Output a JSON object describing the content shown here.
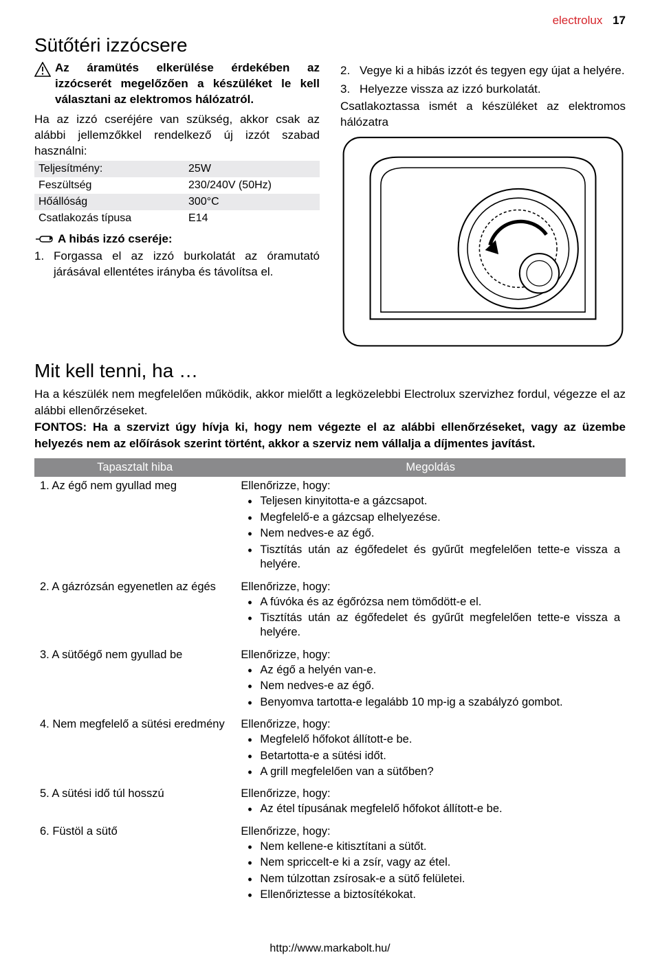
{
  "header": {
    "brand": "electrolux",
    "page_number": "17"
  },
  "section1": {
    "title": "Sütőtéri izzócsere",
    "warning_text": "Az áramütés elkerülése érdekében az izzócserét megelőzően a készüléket le kell választani az elektromos hálózatról.",
    "intro_text": "Ha az izzó cseréjére van szükség, akkor csak az alábbi jellemzőkkel rendelkező új izzót szabad használni:",
    "specs": [
      {
        "label": "Teljesítmény:",
        "value": "25W"
      },
      {
        "label": "Feszültség",
        "value": "230/240V (50Hz)"
      },
      {
        "label": "Hőállóság",
        "value": "300°C"
      },
      {
        "label": "Csatlakozás típusa",
        "value": "E14"
      }
    ],
    "subheading": "A hibás izzó cseréje:",
    "step1_num": "1.",
    "step1_text": "Forgassa el az izzó burkolatát az óramutató járásával ellentétes irányba és távolítsa el.",
    "step2_num": "2.",
    "step2_text": "Vegye ki a hibás izzót és tegyen egy újat a helyére.",
    "step3_num": "3.",
    "step3_text": "Helyezze vissza az izzó burkolatát.",
    "after_steps": "Csatlakoztassa ismét a készüléket az elektromos hálózatra"
  },
  "section2": {
    "title": "Mit kell tenni, ha …",
    "intro": "Ha a készülék nem megfelelően működik, akkor mielőtt a legközelebbi Electrolux szervizhez fordul, végezze el az alábbi ellenőrzéseket.",
    "bold_note": "FONTOS: Ha a szervizt úgy hívja ki, hogy nem végezte el az alábbi ellenőrzéseket, vagy az üzembe helyezés nem az előírások szerint történt, akkor a szerviz nem vállalja a díjmentes javítást.",
    "table": {
      "col_issue": "Tapasztalt hiba",
      "col_solution": "Megoldás",
      "lead": "Ellenőrizze, hogy:",
      "rows": [
        {
          "issue": "1. Az égő nem gyullad meg",
          "items": [
            "Teljesen kinyitotta-e a gázcsapot.",
            "Megfelelő-e a gázcsap elhelyezése.",
            "Nem nedves-e az égő.",
            "Tisztítás után az égőfedelet és gyűrűt megfelelően tette-e vissza a helyére."
          ]
        },
        {
          "issue": "2. A gázrózsán egyenetlen az égés",
          "items": [
            "A fúvóka és az égőrózsa nem tömődött-e el.",
            "Tisztítás után az égőfedelet és gyűrűt megfelelően tette-e vissza a helyére."
          ]
        },
        {
          "issue": "3. A sütőégő nem gyullad be",
          "items": [
            "Az égő a helyén van-e.",
            "Nem nedves-e az égő.",
            "Benyomva tartotta-e legalább 10 mp-ig a szabályzó gombot."
          ]
        },
        {
          "issue": "4. Nem megfelelő a sütési eredmény",
          "items": [
            "Megfelelő hőfokot állított-e be.",
            "Betartotta-e a sütési időt.",
            "A grill megfelelően van a sütőben?"
          ]
        },
        {
          "issue": "5. A sütési idő túl hosszú",
          "items": [
            "Az étel típusának megfelelő hőfokot állított-e be."
          ]
        },
        {
          "issue": "6. Füstöl a sütő",
          "items": [
            "Nem kellene-e kitisztítani a sütőt.",
            "Nem spriccelt-e ki a zsír, vagy az étel.",
            "Nem túlzottan zsírosak-e a sütő felületei.",
            "Ellenőriztesse a biztosítékokat."
          ]
        }
      ]
    }
  },
  "footer": {
    "url": "http://www.markabolt.hu/"
  },
  "colors": {
    "brand_red": "#d6252b",
    "table_header_bg": "#8a8a8c",
    "table_header_fg": "#ffffff",
    "row_shade": "#e9e9eb"
  }
}
